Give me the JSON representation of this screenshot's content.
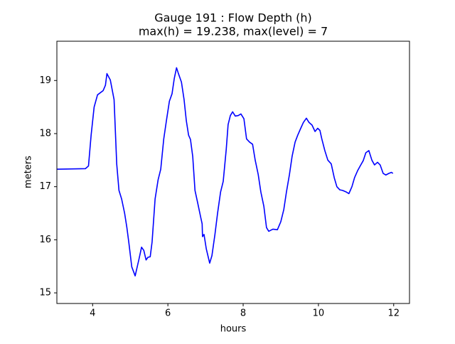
{
  "chart_data": {
    "type": "line",
    "title": "Gauge 191 : Flow Depth (h)",
    "subtitle": "max(h) =  19.238,    max(level) = 7",
    "xlabel": "hours",
    "ylabel": "meters",
    "color": "#0000ff",
    "x": [
      3.06,
      3.81,
      3.89,
      3.96,
      4.04,
      4.13,
      4.28,
      4.34,
      4.38,
      4.47,
      4.57,
      4.64,
      4.7,
      4.77,
      4.85,
      4.91,
      4.96,
      5.04,
      5.13,
      5.23,
      5.3,
      5.36,
      5.42,
      5.47,
      5.53,
      5.58,
      5.66,
      5.74,
      5.81,
      5.89,
      5.96,
      6.04,
      6.11,
      6.17,
      6.23,
      6.28,
      6.36,
      6.43,
      6.49,
      6.55,
      6.6,
      6.66,
      6.72,
      6.79,
      6.87,
      6.91,
      6.92,
      6.96,
      7.02,
      7.11,
      7.17,
      7.25,
      7.32,
      7.4,
      7.47,
      7.55,
      7.6,
      7.66,
      7.72,
      7.79,
      7.87,
      7.94,
      8.02,
      8.09,
      8.17,
      8.25,
      8.32,
      8.4,
      8.47,
      8.55,
      8.62,
      8.68,
      8.79,
      8.91,
      9.0,
      9.08,
      9.15,
      9.23,
      9.3,
      9.38,
      9.45,
      9.53,
      9.6,
      9.68,
      9.75,
      9.83,
      9.91,
      9.98,
      10.04,
      10.09,
      10.17,
      10.25,
      10.34,
      10.42,
      10.49,
      10.57,
      10.64,
      10.74,
      10.81,
      10.89,
      10.96,
      11.04,
      11.11,
      11.19,
      11.26,
      11.34,
      11.42,
      11.49,
      11.57,
      11.64,
      11.72,
      11.79,
      11.87,
      11.94,
      11.98
    ],
    "values": [
      17.33,
      17.34,
      17.39,
      17.97,
      18.5,
      18.73,
      18.81,
      18.91,
      19.13,
      19.01,
      18.64,
      17.43,
      16.93,
      16.77,
      16.5,
      16.23,
      15.96,
      15.49,
      15.32,
      15.63,
      15.86,
      15.8,
      15.62,
      15.67,
      15.68,
      15.96,
      16.77,
      17.13,
      17.33,
      17.9,
      18.24,
      18.61,
      18.75,
      19.04,
      19.24,
      19.13,
      18.97,
      18.64,
      18.24,
      17.97,
      17.89,
      17.57,
      16.93,
      16.7,
      16.43,
      16.3,
      16.06,
      16.1,
      15.83,
      15.56,
      15.7,
      16.1,
      16.5,
      16.9,
      17.1,
      17.7,
      18.17,
      18.34,
      18.41,
      18.33,
      18.34,
      18.37,
      18.28,
      17.9,
      17.84,
      17.8,
      17.5,
      17.23,
      16.9,
      16.63,
      16.23,
      16.16,
      16.2,
      16.19,
      16.34,
      16.57,
      16.9,
      17.23,
      17.57,
      17.84,
      17.97,
      18.1,
      18.21,
      18.29,
      18.21,
      18.16,
      18.04,
      18.1,
      18.06,
      17.9,
      17.68,
      17.5,
      17.43,
      17.17,
      17.0,
      16.94,
      16.93,
      16.9,
      16.87,
      17.0,
      17.17,
      17.3,
      17.39,
      17.49,
      17.64,
      17.68,
      17.5,
      17.41,
      17.46,
      17.41,
      17.25,
      17.22,
      17.25,
      17.27,
      17.25
    ],
    "xlim": [
      3.05,
      12.42
    ],
    "ylim": [
      14.8,
      19.74
    ],
    "xticks": [
      4,
      6,
      8,
      10,
      12
    ],
    "yticks": [
      15,
      16,
      17,
      18,
      19
    ]
  }
}
